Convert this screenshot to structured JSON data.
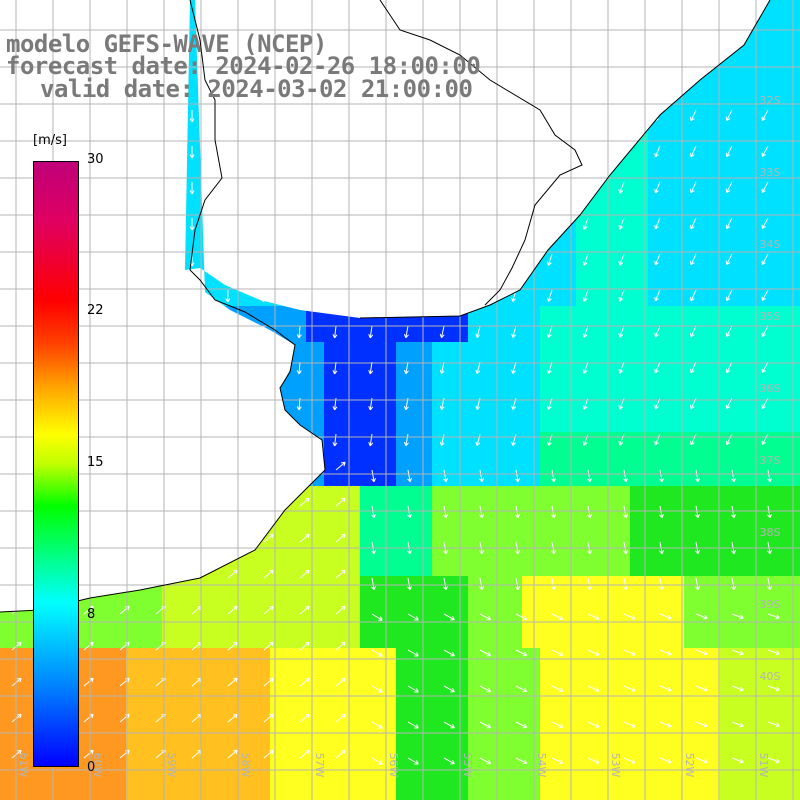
{
  "header": {
    "line1": "modelo GEFS-WAVE (NCEP)",
    "line2": "forecast date: 2024-02-26 18:00:00",
    "line3": "valid date: 2024-03-02 21:00:00"
  },
  "colorbar": {
    "unit": "[m/s]",
    "ticks": [
      "30",
      "22",
      "15",
      "8",
      "0"
    ],
    "colors": [
      "#0000ff",
      "#0080ff",
      "#00ffff",
      "#00ff80",
      "#00ff00",
      "#ffff00",
      "#ffa000",
      "#ff0000",
      "#c0007a"
    ]
  },
  "lat_labels": [
    "32S",
    "33S",
    "34S",
    "35S",
    "36S",
    "37S",
    "38S",
    "39S",
    "40S"
  ],
  "lon_labels": [
    "61W",
    "60W",
    "59W",
    "58W",
    "57W",
    "56W",
    "55W",
    "54W",
    "53W",
    "52W",
    "51W"
  ],
  "map_colors": {
    "land": "#ffffff",
    "coast": "#000000",
    "grid": "#b4b4b4",
    "arrows": "#ffffff"
  }
}
